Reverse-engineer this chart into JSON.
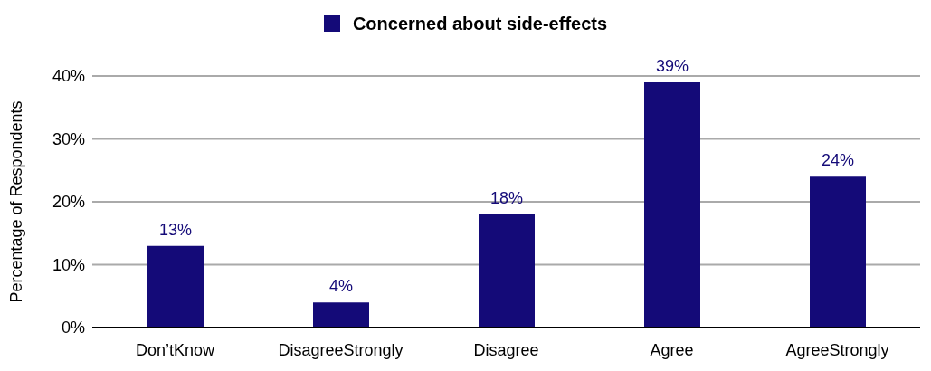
{
  "chart_data": {
    "type": "bar",
    "ylabel": "Percentage of Respondents",
    "categories": [
      "Don’tKnow",
      "DisagreeStrongly",
      "Disagree",
      "Agree",
      "AgreeStrongly"
    ],
    "series": [
      {
        "name": "Concerned about side-effects",
        "color": "#140a78",
        "values": [
          13,
          4,
          18,
          39,
          24
        ]
      }
    ],
    "value_labels": [
      "13%",
      "4%",
      "18%",
      "39%",
      "24%"
    ],
    "ylim": [
      0,
      40
    ],
    "yticks": [
      {
        "value": 0,
        "label": "0%"
      },
      {
        "value": 10,
        "label": "10%"
      },
      {
        "value": 20,
        "label": "20%"
      },
      {
        "value": 30,
        "label": "30%"
      },
      {
        "value": 40,
        "label": "40%"
      }
    ],
    "grid": "y",
    "legend": "top"
  }
}
